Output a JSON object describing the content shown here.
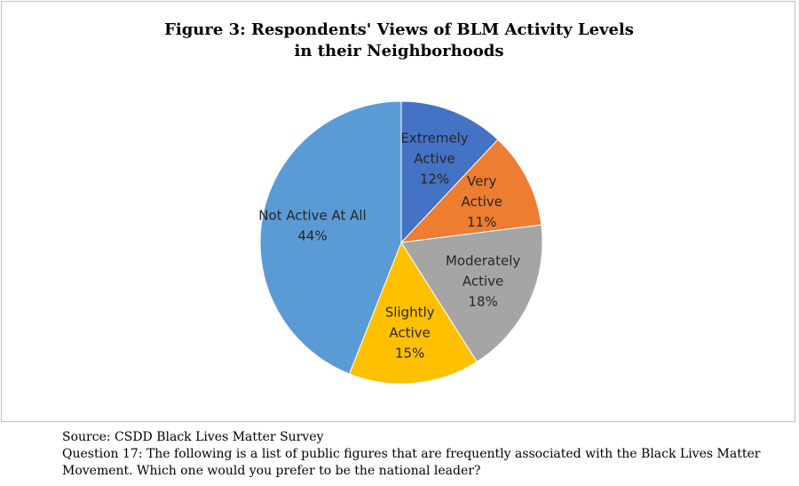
{
  "chart_data": {
    "type": "pie",
    "title_lines": [
      "Figure 3: Respondents' Views of BLM Activity Levels",
      "in their Neighborhoods"
    ],
    "slices": [
      {
        "label_lines": [
          "Extremely",
          "Active"
        ],
        "value": 12,
        "value_label": "12%",
        "color": "#4472c4"
      },
      {
        "label_lines": [
          "Very",
          "Active"
        ],
        "value": 11,
        "value_label": "11%",
        "color": "#ed7d31"
      },
      {
        "label_lines": [
          "Moderately",
          "Active"
        ],
        "value": 18,
        "value_label": "18%",
        "color": "#a5a5a5"
      },
      {
        "label_lines": [
          "Slightly",
          "Active"
        ],
        "value": 15,
        "value_label": "15%",
        "color": "#ffc000"
      },
      {
        "label_lines": [
          "Not Active At All"
        ],
        "value": 44,
        "value_label": "44%",
        "color": "#5b9bd5"
      }
    ]
  },
  "caption": {
    "source": "Source: CSDD Black Lives Matter Survey",
    "question": "Question 17: The following is a list of public figures that are frequently associated with the Black Lives Matter Movement. Which one would you prefer to be the national leader?"
  }
}
